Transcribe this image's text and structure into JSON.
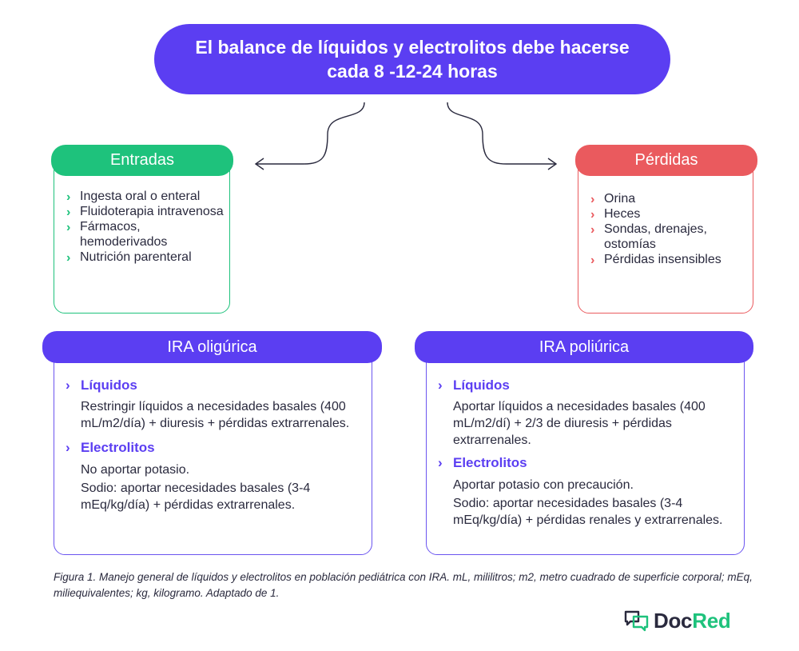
{
  "title": {
    "line1": "El balance de líquidos y electrolitos debe hacerse",
    "line2": "cada 8 -12-24 horas"
  },
  "colors": {
    "accent": "#5b3ef2",
    "green": "#1ec27c",
    "red": "#ea5a5e"
  },
  "entradas": {
    "label": "Entradas",
    "items": [
      "Ingesta oral o enteral",
      "Fluidoterapia intravenosa",
      "Fármacos, hemoderivados",
      "Nutrición parenteral"
    ]
  },
  "perdidas": {
    "label": "Pérdidas",
    "items": [
      "Orina",
      "Heces",
      "Sondas, drenajes, ostomías",
      "Pérdidas insensibles"
    ]
  },
  "ira_oligurica": {
    "label": "IRA oligúrica",
    "liquidos_label": "Líquidos",
    "liquidos_text": "Restringir líquidos a necesidades basales (400 mL/m2/día) + diuresis + pérdidas extrarrenales.",
    "electrolitos_label": "Electrolitos",
    "electrolitos_text1": "No aportar potasio.",
    "electrolitos_text2": "Sodio: aportar necesidades basales (3-4 mEq/kg/día) + pérdidas extrarrenales."
  },
  "ira_poliurica": {
    "label": "IRA poliúrica",
    "liquidos_label": "Líquidos",
    "liquidos_text": "Aportar líquidos a necesidades basales (400 mL/m2/dí) + 2/3 de diuresis + pérdidas extrarrenales.",
    "electrolitos_label": "Electrolitos",
    "electrolitos_text1": "Aportar potasio con precaución.",
    "electrolitos_text2": "Sodio: aportar necesidades basales (3-4 mEq/kg/día) + pérdidas renales y extrarrenales."
  },
  "caption": "Figura 1. Manejo general de líquidos y electrolitos en población pediátrica con IRA. mL, mililitros; m2, metro cuadrado de superficie corporal; mEq, miliequivalentes; kg, kilogramo. Adaptado de 1.",
  "logo": {
    "part1": "Doc",
    "part2": "Red",
    "icon": "chat-bubbles-icon"
  }
}
